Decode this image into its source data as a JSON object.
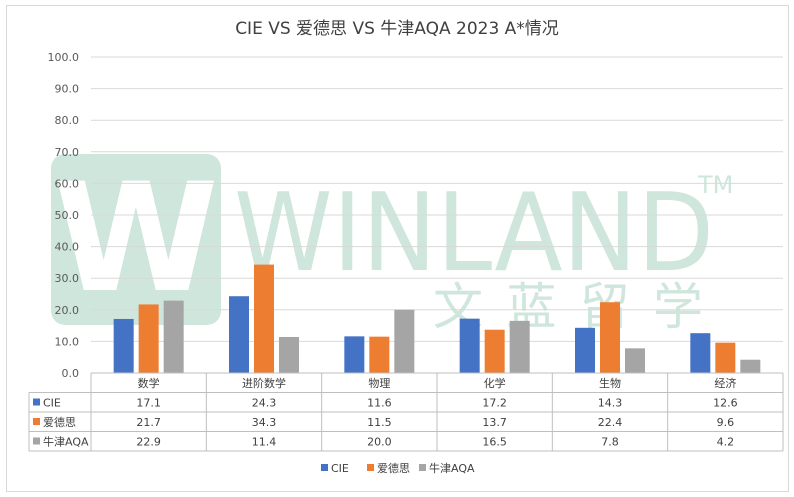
{
  "chart_data": {
    "type": "bar",
    "title": "CIE VS 爱德思 VS 牛津AQA 2023 A*情况",
    "categories": [
      "数学",
      "进阶数学",
      "物理",
      "化学",
      "生物",
      "经济"
    ],
    "series": [
      {
        "name": "CIE",
        "color": "#4472c4",
        "values": [
          17.1,
          24.3,
          11.6,
          17.2,
          14.3,
          12.6
        ],
        "labels": [
          "17.1",
          "24.3",
          "11.6",
          "17.2",
          "14.3",
          "12.6"
        ]
      },
      {
        "name": "爱德思",
        "color": "#ed7d31",
        "values": [
          21.7,
          34.3,
          11.5,
          13.7,
          22.4,
          9.6
        ],
        "labels": [
          "21.7",
          "34.3",
          "11.5",
          "13.7",
          "22.4",
          "9.6"
        ]
      },
      {
        "name": "牛津AQA",
        "color": "#a5a5a5",
        "values": [
          22.9,
          11.4,
          20.0,
          16.5,
          7.8,
          4.2
        ],
        "labels": [
          "22.9",
          "11.4",
          "20.0",
          "16.5",
          "7.8",
          "4.2"
        ]
      }
    ],
    "ylim": [
      0,
      100
    ],
    "yticks": [
      "0.0",
      "10.0",
      "20.0",
      "30.0",
      "40.0",
      "50.0",
      "60.0",
      "70.0",
      "80.0",
      "90.0",
      "100.0"
    ],
    "grid": true,
    "legend": "bottom",
    "data_table": true
  },
  "watermark": {
    "text": "WINLAND",
    "trademark": "TM",
    "subtitle": "文 蓝 留 学",
    "logo_letter": "W",
    "color": "#cfe6dc"
  }
}
